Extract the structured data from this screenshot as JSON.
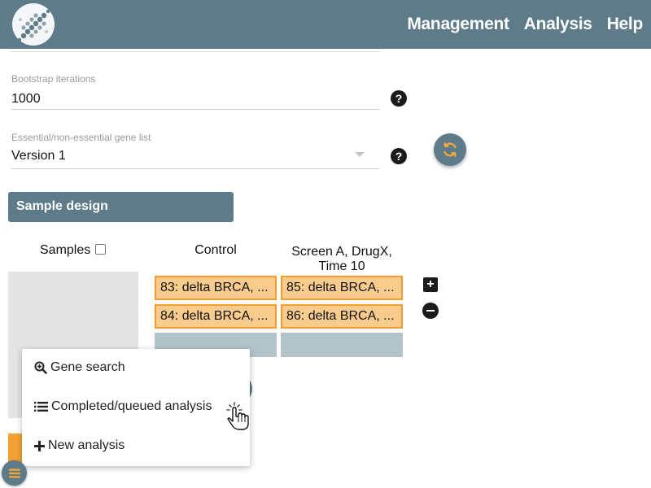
{
  "header": {
    "nav": [
      "Management",
      "Analysis",
      "Help"
    ]
  },
  "form": {
    "bootstrap": {
      "label": "Bootstrap iterations",
      "value": "1000",
      "help": "?"
    },
    "gene_list": {
      "label": "Essential/non-essential gene list",
      "value": "Version 1",
      "help": "?"
    }
  },
  "sample_design": {
    "title": "Sample design",
    "samples_label": "Samples",
    "columns": [
      {
        "header_lines": [
          "Control"
        ],
        "samples": [
          "83: delta BRCA, ...",
          "84: delta BRCA, ..."
        ]
      },
      {
        "header_lines": [
          "Screen A, DrugX,",
          "Time 10"
        ],
        "samples": [
          "85: delta BRCA, ...",
          "86: delta BRCA, ..."
        ]
      }
    ],
    "add_symbol": "+"
  },
  "menu": {
    "items": [
      {
        "label": "Gene search",
        "icon": "search-plus-icon"
      },
      {
        "label": "Completed/queued analysis",
        "icon": "list-icon"
      },
      {
        "label": "New analysis",
        "icon": "plus-icon"
      }
    ]
  },
  "colors": {
    "brand": "#5d7b89",
    "chip_fill": "#f9cc8d",
    "chip_border": "#f29d2e",
    "refresh_icon": "#f6a838",
    "fab_icon": "#f6a838"
  }
}
